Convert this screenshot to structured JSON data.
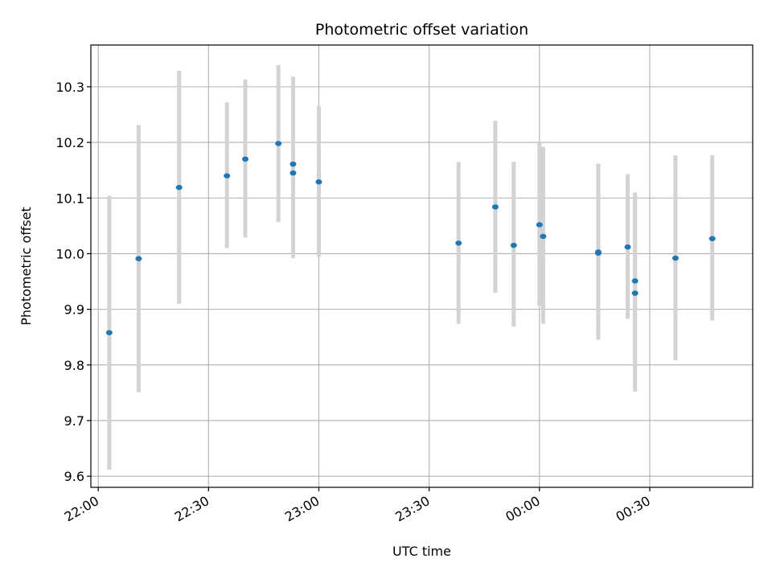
{
  "chart_data": {
    "type": "scatter",
    "title": "Photometric offset variation",
    "xlabel": "UTC time",
    "ylabel": "Photometric offset",
    "grid": true,
    "x_unit": "UTC clock time (HH:MM), spanning midnight",
    "xlim": [
      "21:58",
      "00:58"
    ],
    "ylim": [
      9.58,
      10.375
    ],
    "x_ticks": [
      "22:00",
      "22:30",
      "23:00",
      "23:30",
      "00:00",
      "00:30"
    ],
    "y_ticks": [
      "9.6",
      "9.7",
      "9.8",
      "9.9",
      "10.0",
      "10.1",
      "10.2",
      "10.3"
    ],
    "points": [
      {
        "time": "22:03",
        "y": 9.858,
        "low": 9.612,
        "high": 10.104
      },
      {
        "time": "22:11",
        "y": 9.991,
        "low": 9.751,
        "high": 10.231
      },
      {
        "time": "22:22",
        "y": 10.119,
        "low": 9.91,
        "high": 10.329
      },
      {
        "time": "22:35",
        "y": 10.14,
        "low": 10.01,
        "high": 10.272
      },
      {
        "time": "22:40",
        "y": 10.17,
        "low": 10.029,
        "high": 10.313
      },
      {
        "time": "22:49",
        "y": 10.198,
        "low": 10.057,
        "high": 10.339
      },
      {
        "time": "22:53",
        "y": 10.161,
        "low": 10.003,
        "high": 10.318
      },
      {
        "time": "22:53",
        "y": 10.145,
        "low": 9.992,
        "high": 10.298
      },
      {
        "time": "23:00",
        "y": 10.129,
        "low": 9.994,
        "high": 10.265
      },
      {
        "time": "23:38",
        "y": 10.019,
        "low": 9.874,
        "high": 10.165
      },
      {
        "time": "23:48",
        "y": 10.084,
        "low": 9.93,
        "high": 10.239
      },
      {
        "time": "23:53",
        "y": 10.015,
        "low": 9.869,
        "high": 10.165
      },
      {
        "time": "00:00",
        "y": 10.052,
        "low": 9.906,
        "high": 10.2
      },
      {
        "time": "00:01",
        "y": 10.031,
        "low": 9.874,
        "high": 10.192
      },
      {
        "time": "00:16",
        "y": 10.001,
        "low": 9.845,
        "high": 10.153
      },
      {
        "time": "00:16",
        "y": 10.003,
        "low": 9.85,
        "high": 10.162
      },
      {
        "time": "00:24",
        "y": 10.012,
        "low": 9.883,
        "high": 10.143
      },
      {
        "time": "00:26",
        "y": 9.951,
        "low": 9.792,
        "high": 10.11
      },
      {
        "time": "00:26",
        "y": 9.929,
        "low": 9.752,
        "high": 10.109
      },
      {
        "time": "00:37",
        "y": 9.992,
        "low": 9.808,
        "high": 10.177
      },
      {
        "time": "00:47",
        "y": 10.027,
        "low": 9.88,
        "high": 10.177
      }
    ]
  }
}
